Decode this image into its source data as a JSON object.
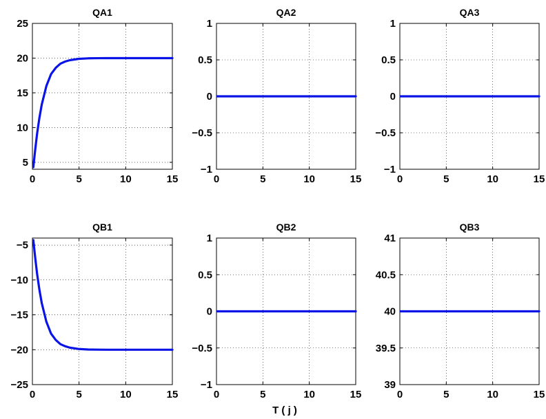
{
  "figure": {
    "xlabel": "T ( j )",
    "line_color": "#0a14e6"
  },
  "chart_data": [
    {
      "type": "line",
      "title": "QA1",
      "xlim": [
        0,
        15
      ],
      "ylim": [
        4,
        25
      ],
      "xticks": [
        0,
        5,
        10,
        15
      ],
      "xtick_labels": [
        "0",
        "5",
        "10",
        "15"
      ],
      "yticks": [
        5,
        10,
        15,
        20,
        25
      ],
      "ytick_labels": [
        "5",
        "10",
        "15",
        "20",
        "25"
      ],
      "grid": true,
      "series": [
        {
          "x": [
            0.1,
            0.3,
            0.5,
            0.75,
            1,
            1.5,
            2,
            2.5,
            3,
            3.5,
            4,
            5,
            6,
            7,
            8,
            10,
            12,
            15
          ],
          "y": [
            4.3,
            6.8,
            9.1,
            11.4,
            13.3,
            16.0,
            17.7,
            18.6,
            19.2,
            19.5,
            19.7,
            19.9,
            19.97,
            19.99,
            20,
            20,
            20,
            20
          ]
        }
      ]
    },
    {
      "type": "line",
      "title": "QA2",
      "xlim": [
        0,
        15
      ],
      "ylim": [
        -1,
        1
      ],
      "xticks": [
        0,
        5,
        10,
        15
      ],
      "xtick_labels": [
        "0",
        "5",
        "10",
        "15"
      ],
      "yticks": [
        -1,
        -0.5,
        0,
        0.5,
        1
      ],
      "ytick_labels": [
        "−1",
        "−0.5",
        "0",
        "0.5",
        "1"
      ],
      "grid": true,
      "series": [
        {
          "x": [
            0.1,
            15
          ],
          "y": [
            0,
            0
          ]
        }
      ]
    },
    {
      "type": "line",
      "title": "QA3",
      "xlim": [
        0,
        15
      ],
      "ylim": [
        -1,
        1
      ],
      "xticks": [
        0,
        5,
        10,
        15
      ],
      "xtick_labels": [
        "0",
        "5",
        "10",
        "15"
      ],
      "yticks": [
        -1,
        -0.5,
        0,
        0.5,
        1
      ],
      "ytick_labels": [
        "−1",
        "−0.5",
        "0",
        "0.5",
        "1"
      ],
      "grid": true,
      "series": [
        {
          "x": [
            0.1,
            15
          ],
          "y": [
            0,
            0
          ]
        }
      ]
    },
    {
      "type": "line",
      "title": "QB1",
      "xlim": [
        0,
        15
      ],
      "ylim": [
        -25,
        -4
      ],
      "xticks": [
        0,
        5,
        10,
        15
      ],
      "xtick_labels": [
        "0",
        "5",
        "10",
        "15"
      ],
      "yticks": [
        -25,
        -20,
        -15,
        -10,
        -5
      ],
      "ytick_labels": [
        "−25",
        "−20",
        "−15",
        "−10",
        "−5"
      ],
      "grid": true,
      "series": [
        {
          "x": [
            0.1,
            0.3,
            0.5,
            0.75,
            1,
            1.5,
            2,
            2.5,
            3,
            3.5,
            4,
            5,
            6,
            7,
            8,
            10,
            12,
            15
          ],
          "y": [
            -4.3,
            -6.8,
            -9.1,
            -11.4,
            -13.3,
            -16.0,
            -17.7,
            -18.6,
            -19.2,
            -19.5,
            -19.7,
            -19.9,
            -19.97,
            -19.99,
            -20,
            -20,
            -20,
            -20
          ]
        }
      ]
    },
    {
      "type": "line",
      "title": "QB2",
      "xlim": [
        0,
        15
      ],
      "ylim": [
        -1,
        1
      ],
      "xticks": [
        0,
        5,
        10,
        15
      ],
      "xtick_labels": [
        "0",
        "5",
        "10",
        "15"
      ],
      "yticks": [
        -1,
        -0.5,
        0,
        0.5,
        1
      ],
      "ytick_labels": [
        "−1",
        "−0.5",
        "0",
        "0.5",
        "1"
      ],
      "grid": true,
      "series": [
        {
          "x": [
            0.1,
            15
          ],
          "y": [
            0,
            0
          ]
        }
      ]
    },
    {
      "type": "line",
      "title": "QB3",
      "xlim": [
        0,
        15
      ],
      "ylim": [
        39,
        41
      ],
      "xticks": [
        0,
        5,
        10,
        15
      ],
      "xtick_labels": [
        "0",
        "5",
        "10",
        "15"
      ],
      "yticks": [
        39,
        39.5,
        40,
        40.5,
        41
      ],
      "ytick_labels": [
        "39",
        "39.5",
        "40",
        "40.5",
        "41"
      ],
      "grid": true,
      "series": [
        {
          "x": [
            0.1,
            15
          ],
          "y": [
            40,
            40
          ]
        }
      ]
    }
  ]
}
